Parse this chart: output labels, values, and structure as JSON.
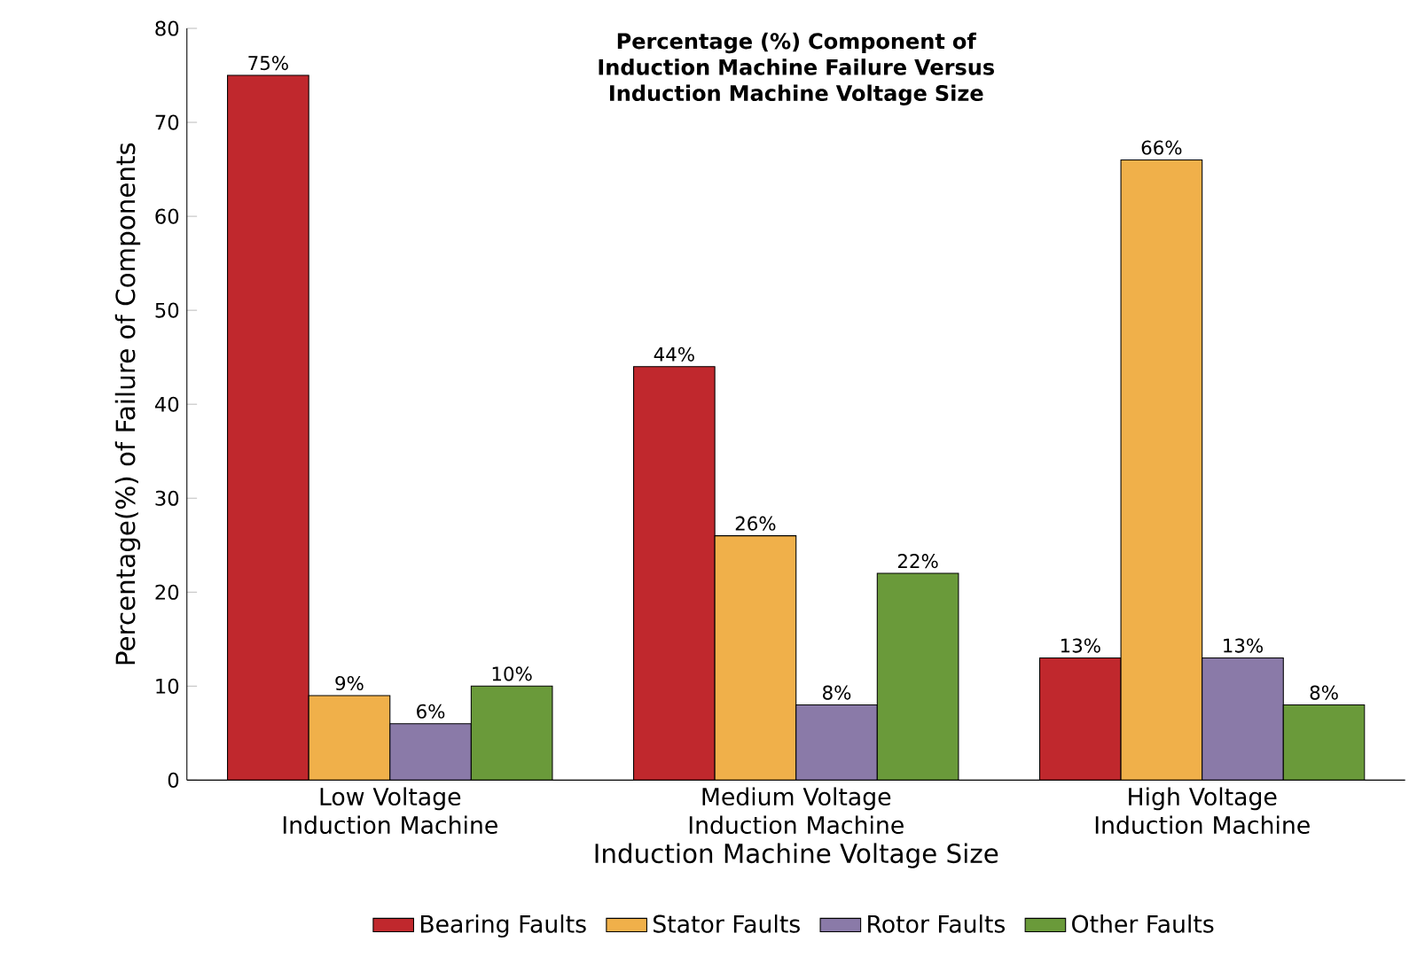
{
  "chart_data": {
    "type": "bar",
    "title": "Percentage (%) Component of Induction Machine Failure Versus Induction Machine Voltage Size",
    "xlabel": "Induction Machine Voltage Size",
    "ylabel": "Percentage(%) of Failure of Components",
    "categories": [
      "Low Voltage Induction Machine",
      "Medium Voltage Induction Machine",
      "High Voltage Induction Machine"
    ],
    "series": [
      {
        "name": "Bearing Faults",
        "color": "#c0282d",
        "values": [
          75,
          44,
          13
        ],
        "value_labels": [
          "75%",
          "44%",
          "13%"
        ]
      },
      {
        "name": "Stator Faults",
        "color": "#f0b04a",
        "values": [
          9,
          26,
          66
        ],
        "value_labels": [
          "9%",
          "26%",
          "66%"
        ]
      },
      {
        "name": "Rotor Faults",
        "color": "#8a7aa8",
        "values": [
          6,
          8,
          13
        ],
        "value_labels": [
          "6%",
          "8%",
          "13%"
        ]
      },
      {
        "name": "Other Faults",
        "color": "#6a9a3a",
        "values": [
          10,
          22,
          8
        ],
        "value_labels": [
          "10%",
          "22%",
          "8%"
        ]
      }
    ],
    "ylim": [
      0,
      80
    ],
    "yticks": [
      0,
      10,
      20,
      30,
      40,
      50,
      60,
      70,
      80
    ],
    "grid": false,
    "legend": "bottom"
  }
}
